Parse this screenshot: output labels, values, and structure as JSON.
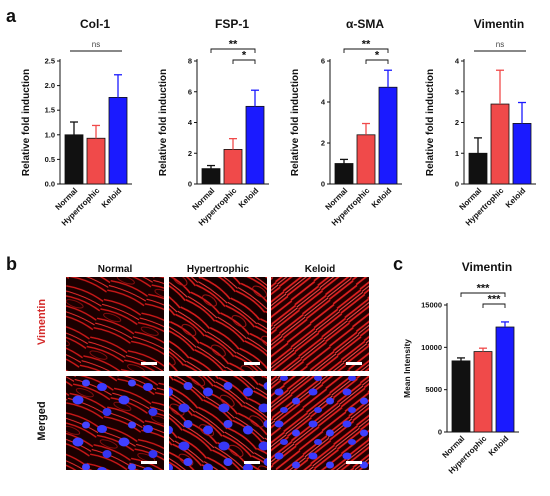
{
  "panel_a_label": "a",
  "panel_b_label": "b",
  "panel_c_label": "c",
  "colors": {
    "normal": "#111111",
    "hypertrophic": "#f04a4a",
    "keloid": "#1a1aff",
    "vimentin_label": "#d42a2a"
  },
  "chart_data": [
    {
      "type": "bar",
      "title": "Col-1",
      "ylabel": "Relative fold induction",
      "categories": [
        "Normal",
        "Hypertrophic",
        "Keloid"
      ],
      "values": [
        1.0,
        0.93,
        1.76
      ],
      "errors": [
        0.26,
        0.26,
        0.46
      ],
      "ylim": [
        0,
        2.5
      ],
      "yticks": [
        "0.0",
        "0.5",
        "1.0",
        "1.5",
        "2.0",
        "2.5"
      ],
      "significance": [
        {
          "from": 0,
          "to": 2,
          "label": "ns"
        }
      ]
    },
    {
      "type": "bar",
      "title": "FSP-1",
      "ylabel": "Relative fold induction",
      "categories": [
        "Normal",
        "Hypertrophic",
        "Keloid"
      ],
      "values": [
        1.0,
        2.25,
        5.05
      ],
      "errors": [
        0.2,
        0.7,
        1.05
      ],
      "ylim": [
        0,
        8
      ],
      "yticks": [
        "0",
        "2",
        "4",
        "6",
        "8"
      ],
      "significance": [
        {
          "from": 0,
          "to": 2,
          "label": "**"
        },
        {
          "from": 1,
          "to": 2,
          "label": "*"
        }
      ]
    },
    {
      "type": "bar",
      "title": "α-SMA",
      "ylabel": "Relative fold induction",
      "categories": [
        "Normal",
        "Hypertrophic",
        "Keloid"
      ],
      "values": [
        1.0,
        2.4,
        4.72
      ],
      "errors": [
        0.2,
        0.55,
        0.83
      ],
      "ylim": [
        0,
        6
      ],
      "yticks": [
        "0",
        "2",
        "4",
        "6"
      ],
      "significance": [
        {
          "from": 0,
          "to": 2,
          "label": "**"
        },
        {
          "from": 1,
          "to": 2,
          "label": "*"
        }
      ]
    },
    {
      "type": "bar",
      "title": "Vimentin",
      "ylabel": "Relative fold induction",
      "categories": [
        "Normal",
        "Hypertrophic",
        "Keloid"
      ],
      "values": [
        1.0,
        2.6,
        1.97
      ],
      "errors": [
        0.5,
        1.1,
        0.68
      ],
      "ylim": [
        0,
        4
      ],
      "yticks": [
        "0",
        "1",
        "2",
        "3",
        "4"
      ],
      "significance": [
        {
          "from": 0,
          "to": 2,
          "label": "ns"
        }
      ]
    },
    {
      "type": "bar",
      "title": "Vimentin",
      "ylabel": "Mean Intensity",
      "categories": [
        "Normal",
        "Hypertrophic",
        "Keloid"
      ],
      "values": [
        8400,
        9500,
        12400
      ],
      "errors": [
        350,
        400,
        600
      ],
      "ylim": [
        0,
        15000
      ],
      "yticks": [
        "0",
        "5000",
        "10000",
        "15000"
      ],
      "significance": [
        {
          "from": 0,
          "to": 2,
          "label": "***"
        },
        {
          "from": 1,
          "to": 2,
          "label": "***"
        }
      ]
    }
  ],
  "micrographs": {
    "columns": [
      "Normal",
      "Hypertrophic",
      "Keloid"
    ],
    "rows": [
      "Vimentin",
      "Merged"
    ]
  }
}
